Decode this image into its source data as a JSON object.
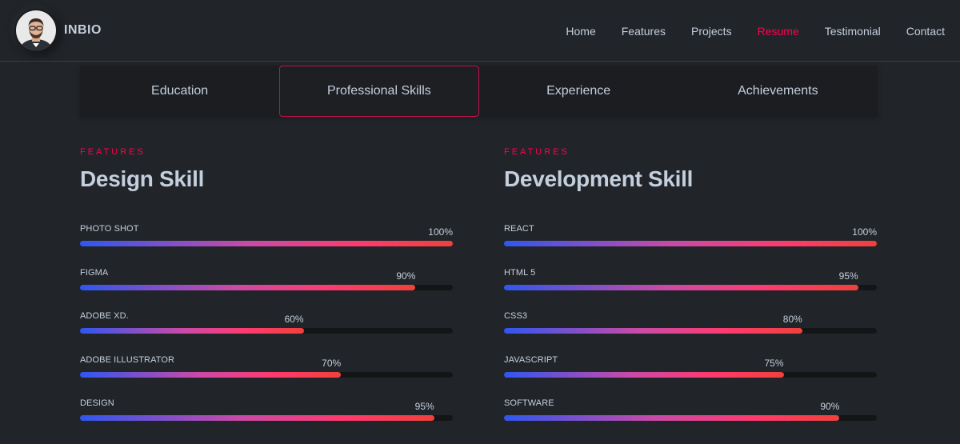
{
  "header": {
    "brand": "INBIO",
    "nav": [
      {
        "label": "Home",
        "active": false
      },
      {
        "label": "Features",
        "active": false
      },
      {
        "label": "Projects",
        "active": false
      },
      {
        "label": "Resume",
        "active": true
      },
      {
        "label": "Testimonial",
        "active": false
      },
      {
        "label": "Contact",
        "active": false
      }
    ]
  },
  "tabs": [
    {
      "label": "Education",
      "active": false
    },
    {
      "label": "Professional Skills",
      "active": true
    },
    {
      "label": "Experience",
      "active": false
    },
    {
      "label": "Achievements",
      "active": false
    }
  ],
  "design": {
    "eyebrow": "FEATURES",
    "title": "Design Skill",
    "skills": [
      {
        "name": "PHOTO SHOT",
        "label": "100%",
        "value": 100
      },
      {
        "name": "FIGMA",
        "label": "90%",
        "value": 90
      },
      {
        "name": "ADOBE XD.",
        "label": "60%",
        "value": 60
      },
      {
        "name": "ADOBE ILLUSTRATOR",
        "label": "70%",
        "value": 70
      },
      {
        "name": "DESIGN",
        "label": "95%",
        "value": 95
      }
    ]
  },
  "development": {
    "eyebrow": "FEATURES",
    "title": "Development Skill",
    "skills": [
      {
        "name": "REACT",
        "label": "100%",
        "value": 100
      },
      {
        "name": "HTML 5",
        "label": "95%",
        "value": 95
      },
      {
        "name": "CSS3",
        "label": "80%",
        "value": 80
      },
      {
        "name": "JAVASCRIPT",
        "label": "75%",
        "value": 75
      },
      {
        "name": "SOFTWARE",
        "label": "90%",
        "value": 90
      }
    ]
  },
  "colors": {
    "accent": "#ff014f",
    "background": "#212428",
    "text": "#c4cfde"
  }
}
